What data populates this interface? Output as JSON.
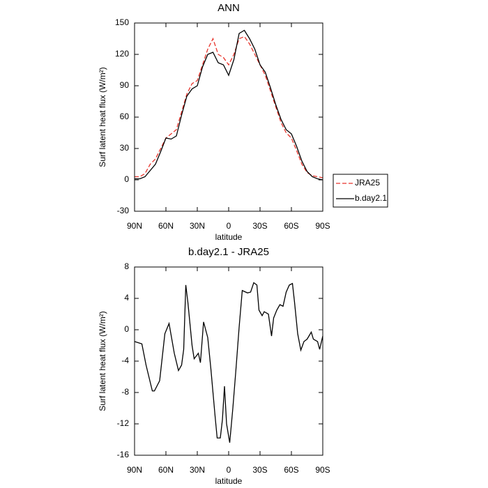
{
  "chart_data": [
    {
      "type": "line",
      "title": "ANN",
      "xlabel": "latitude",
      "ylabel": "Surf latent heat flux (W/m²)",
      "x": [
        90,
        85,
        80,
        75,
        70,
        65,
        60,
        55,
        50,
        45,
        40,
        35,
        30,
        25,
        20,
        15,
        10,
        5,
        0,
        -5,
        -10,
        -15,
        -20,
        -25,
        -30,
        -35,
        -40,
        -45,
        -50,
        -55,
        -60,
        -65,
        -70,
        -75,
        -80,
        -85,
        -90
      ],
      "series": [
        {
          "name": "JRA25",
          "color": "#e8332a",
          "style": "dashed",
          "values": [
            3,
            3,
            6,
            15,
            20,
            30,
            40,
            44,
            48,
            65,
            82,
            92,
            95,
            110,
            125,
            135,
            120,
            117,
            110,
            120,
            135,
            137,
            130,
            120,
            110,
            100,
            85,
            70,
            55,
            45,
            40,
            28,
            15,
            7,
            4,
            3,
            2
          ]
        },
        {
          "name": "b.day2.1",
          "color": "#000000",
          "style": "solid",
          "values": [
            1,
            1,
            3,
            9,
            15,
            27,
            40,
            39,
            42,
            62,
            80,
            87,
            90,
            108,
            120,
            122,
            112,
            110,
            100,
            115,
            140,
            143,
            135,
            125,
            110,
            103,
            88,
            72,
            58,
            48,
            44,
            32,
            18,
            8,
            3,
            1,
            0
          ]
        }
      ],
      "xlim": [
        90,
        -90
      ],
      "xticks": [
        {
          "value": 90,
          "label": "90N"
        },
        {
          "value": 60,
          "label": "60N"
        },
        {
          "value": 30,
          "label": "30N"
        },
        0,
        {
          "value": -30,
          "label": "30S"
        },
        {
          "value": -60,
          "label": "60S"
        },
        {
          "value": -90,
          "label": "90S"
        }
      ],
      "ylim": [
        -30,
        150
      ],
      "yticks": [
        -30,
        0,
        30,
        60,
        90,
        120,
        150
      ],
      "legend": "right"
    },
    {
      "type": "line",
      "title": "b.day2.1 - JRA25",
      "xlabel": "latitude",
      "ylabel": "Surf latent heat flux (W/m²)",
      "x": [
        90,
        83,
        79,
        73,
        71,
        66,
        61,
        57,
        52,
        48,
        45,
        43,
        41,
        39,
        35,
        33,
        29,
        27,
        24,
        20,
        17,
        13,
        11,
        8,
        6,
        4,
        2,
        -1,
        -4,
        -7,
        -10,
        -13,
        -18,
        -21,
        -24,
        -27,
        -29,
        -32,
        -34,
        -38,
        -41,
        -43,
        -46,
        -49,
        -52,
        -55,
        -58,
        -61,
        -63,
        -66,
        -69,
        -72,
        -75,
        -79,
        -81,
        -85,
        -87,
        -90
      ],
      "series": [
        {
          "name": "b.day2.1 - JRA25",
          "color": "#000000",
          "style": "solid",
          "values": [
            -1.5,
            -1.8,
            -4.5,
            -7.8,
            -7.8,
            -6.5,
            -0.5,
            0.8,
            -3,
            -5.2,
            -4.5,
            -2.5,
            5.7,
            3.5,
            -2,
            -3.7,
            -3,
            -4.2,
            1,
            -1,
            -5,
            -11,
            -13.8,
            -13.8,
            -11.5,
            -7.2,
            -12,
            -14.4,
            -10,
            -5,
            0.3,
            5,
            4.7,
            4.8,
            6,
            5.7,
            2.5,
            1.8,
            2.3,
            2,
            -0.8,
            1.5,
            2.5,
            3.2,
            3,
            4.8,
            5.7,
            5.9,
            3.5,
            -0.5,
            -2.6,
            -1.5,
            -1.2,
            -0.3,
            -1.2,
            -1.5,
            -2.5,
            -0.8
          ]
        }
      ],
      "xlim": [
        90,
        -90
      ],
      "xticks": [
        {
          "value": 90,
          "label": "90N"
        },
        {
          "value": 60,
          "label": "60N"
        },
        {
          "value": 30,
          "label": "30N"
        },
        0,
        {
          "value": -30,
          "label": "30S"
        },
        {
          "value": -60,
          "label": "60S"
        },
        {
          "value": -90,
          "label": "90S"
        }
      ],
      "ylim": [
        -16,
        8
      ],
      "yticks": [
        -16,
        -12,
        -8,
        -4,
        0,
        4,
        8
      ]
    }
  ]
}
